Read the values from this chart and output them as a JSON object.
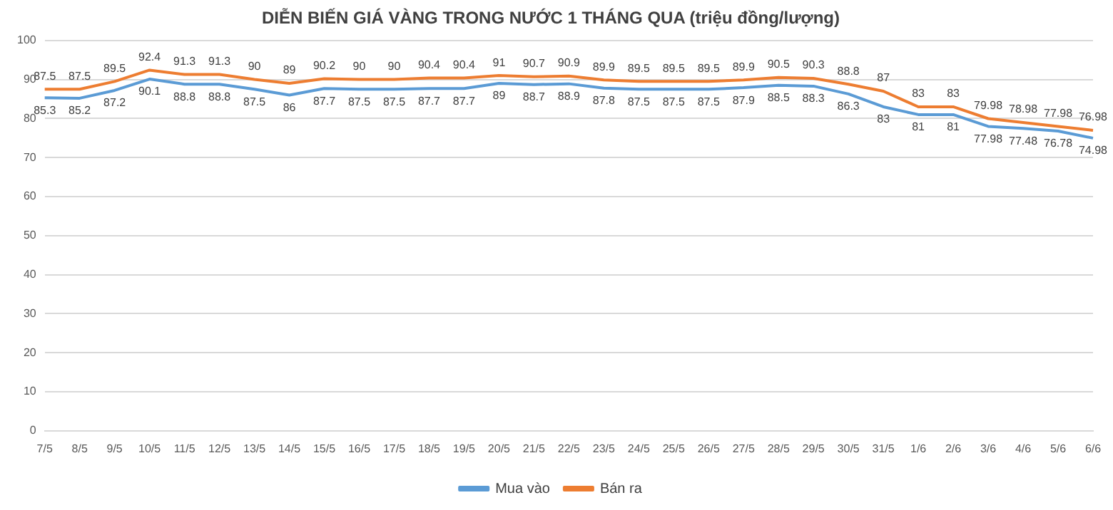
{
  "chart_data": {
    "type": "line",
    "title": "DIỄN BIẾN GIÁ VÀNG TRONG NƯỚC 1 THÁNG QUA (triệu đồng/lượng)",
    "categories": [
      "7/5",
      "8/5",
      "9/5",
      "10/5",
      "11/5",
      "12/5",
      "13/5",
      "14/5",
      "15/5",
      "16/5",
      "17/5",
      "18/5",
      "19/5",
      "20/5",
      "21/5",
      "22/5",
      "23/5",
      "24/5",
      "25/5",
      "26/5",
      "27/5",
      "28/5",
      "29/5",
      "30/5",
      "31/5",
      "1/6",
      "2/6",
      "3/6",
      "4/6",
      "5/6",
      "6/6"
    ],
    "series": [
      {
        "name": "Mua vào",
        "color": "#5b9bd5",
        "values": [
          85.3,
          85.2,
          87.2,
          90.1,
          88.8,
          88.8,
          87.5,
          86,
          87.7,
          87.5,
          87.5,
          87.7,
          87.7,
          89,
          88.7,
          88.9,
          87.8,
          87.5,
          87.5,
          87.5,
          87.9,
          88.5,
          88.3,
          86.3,
          83,
          81,
          81,
          77.98,
          77.48,
          76.78,
          74.98
        ]
      },
      {
        "name": "Bán ra",
        "color": "#ed7d31",
        "values": [
          87.5,
          87.5,
          89.5,
          92.4,
          91.3,
          91.3,
          90,
          89,
          90.2,
          90,
          90,
          90.4,
          90.4,
          91,
          90.7,
          90.9,
          89.9,
          89.5,
          89.5,
          89.5,
          89.9,
          90.5,
          90.3,
          88.8,
          87,
          83,
          83,
          79.98,
          78.98,
          77.98,
          76.98
        ]
      }
    ],
    "ylim": [
      0,
      100
    ],
    "yticks": [
      0,
      10,
      20,
      30,
      40,
      50,
      60,
      70,
      80,
      90,
      100
    ],
    "grid": "y",
    "legend": "bottom",
    "data_labels": true,
    "marker": "none",
    "line_style": "solid"
  }
}
